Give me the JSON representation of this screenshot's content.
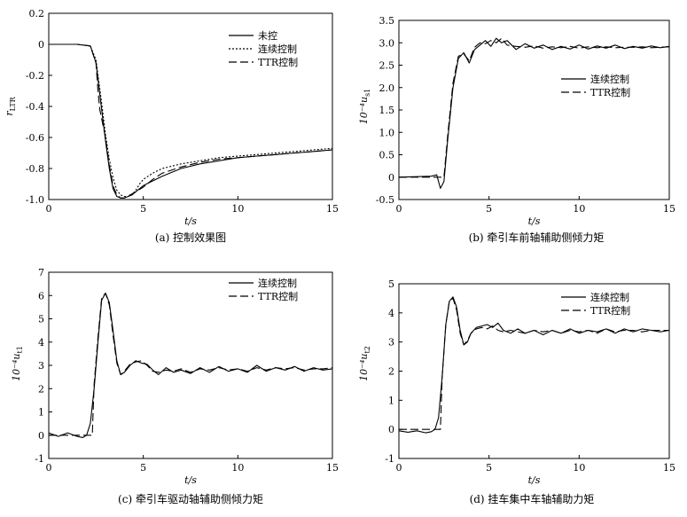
{
  "chart_data": [
    {
      "type": "line",
      "caption": "(a) 控制效果图",
      "xlabel": "t/s",
      "ylabel": "r_LTR",
      "ylabel_main": "r",
      "ylabel_sub": "LTR",
      "xlim": [
        0,
        15
      ],
      "ylim": [
        -1.0,
        0.2
      ],
      "xticks": [
        "0",
        "5",
        "10",
        "15"
      ],
      "yticks": [
        "0.2",
        "0",
        "-0.2",
        "-0.4",
        "-0.6",
        "-0.8",
        "-1.0"
      ],
      "legend_position": "top-right",
      "series": [
        {
          "name": "未控",
          "style": "solid",
          "x": [
            0,
            1.5,
            2.2,
            2.5,
            2.8,
            3.0,
            3.2,
            3.4,
            3.6,
            3.8,
            4.0,
            4.2,
            4.4,
            4.6,
            4.8,
            5.0,
            5.5,
            6.0,
            7.0,
            8.0,
            9.0,
            10.0,
            11.0,
            12.0,
            13.0,
            14.0,
            15.0
          ],
          "y": [
            0,
            0,
            -0.01,
            -0.12,
            -0.42,
            -0.62,
            -0.8,
            -0.93,
            -0.98,
            -0.99,
            -0.99,
            -0.98,
            -0.97,
            -0.95,
            -0.93,
            -0.91,
            -0.88,
            -0.85,
            -0.8,
            -0.77,
            -0.75,
            -0.73,
            -0.72,
            -0.71,
            -0.7,
            -0.69,
            -0.68
          ]
        },
        {
          "name": "连续控制",
          "style": "dotted",
          "x": [
            0,
            1.5,
            2.2,
            2.5,
            2.8,
            3.0,
            3.2,
            3.4,
            3.6,
            3.8,
            4.0,
            4.2,
            4.4,
            4.6,
            4.8,
            5.0,
            5.5,
            6.0,
            7.0,
            8.0,
            9.0,
            10.0,
            11.0,
            12.0,
            13.0,
            14.0,
            15.0
          ],
          "y": [
            0,
            0,
            -0.01,
            -0.1,
            -0.38,
            -0.58,
            -0.74,
            -0.86,
            -0.94,
            -0.97,
            -0.98,
            -0.98,
            -0.97,
            -0.94,
            -0.9,
            -0.87,
            -0.83,
            -0.8,
            -0.77,
            -0.75,
            -0.73,
            -0.72,
            -0.71,
            -0.7,
            -0.69,
            -0.68,
            -0.67
          ]
        },
        {
          "name": "TTR控制",
          "style": "dashed",
          "x": [
            0,
            1.5,
            2.2,
            2.5,
            2.6,
            2.7,
            2.8,
            3.0,
            3.2,
            3.4,
            3.6,
            3.8,
            4.0,
            4.3,
            4.6,
            5.0,
            5.5,
            6.0,
            7.0,
            8.0,
            9.0,
            10.0,
            11.0,
            12.0,
            13.0,
            14.0,
            15.0
          ],
          "y": [
            0,
            0,
            -0.01,
            -0.12,
            -0.3,
            -0.42,
            -0.48,
            -0.6,
            -0.78,
            -0.91,
            -0.97,
            -0.99,
            -0.99,
            -0.97,
            -0.95,
            -0.92,
            -0.87,
            -0.83,
            -0.79,
            -0.76,
            -0.74,
            -0.73,
            -0.72,
            -0.71,
            -0.7,
            -0.69,
            -0.68
          ]
        }
      ]
    },
    {
      "type": "line",
      "caption": "(b) 牵引车前轴辅助侧倾力矩",
      "xlabel": "t/s",
      "ylabel": "10^-4 u_s1",
      "ylabel_main": "10⁻⁴u",
      "ylabel_sub": "s1",
      "xlim": [
        0,
        15
      ],
      "ylim": [
        -0.5,
        3.5
      ],
      "xticks": [
        "0",
        "5",
        "10",
        "15"
      ],
      "yticks": [
        "3.5",
        "3.0",
        "2.5",
        "2.0",
        "1.5",
        "1.0",
        "0.5",
        "0",
        "-0.5"
      ],
      "legend_position": "center-right",
      "series": [
        {
          "name": "连续控制",
          "style": "solid",
          "x": [
            0,
            1.0,
            1.8,
            2.1,
            2.3,
            2.5,
            2.7,
            3.0,
            3.3,
            3.6,
            3.9,
            4.2,
            4.5,
            4.8,
            5.1,
            5.4,
            5.7,
            6.0,
            6.5,
            7.0,
            7.5,
            8.0,
            8.5,
            9.0,
            9.5,
            10.0,
            10.5,
            11.0,
            11.5,
            12.0,
            12.5,
            13.0,
            13.5,
            14.0,
            14.5,
            15.0
          ],
          "y": [
            0,
            0.01,
            0.02,
            0.05,
            -0.25,
            -0.1,
            0.8,
            2.0,
            2.65,
            2.78,
            2.55,
            2.85,
            2.95,
            3.05,
            2.92,
            3.1,
            3.0,
            3.05,
            2.85,
            2.98,
            2.88,
            2.95,
            2.85,
            2.92,
            2.86,
            2.95,
            2.86,
            2.93,
            2.88,
            2.95,
            2.87,
            2.92,
            2.88,
            2.93,
            2.89,
            2.92
          ]
        },
        {
          "name": "TTR控制",
          "style": "dashed",
          "x": [
            0,
            1.0,
            1.8,
            2.1,
            2.3,
            2.5,
            2.7,
            3.0,
            3.3,
            3.6,
            3.9,
            4.2,
            4.5,
            4.8,
            5.1,
            5.4,
            5.7,
            6.0,
            6.5,
            7.0,
            7.5,
            8.0,
            8.5,
            9.0,
            9.5,
            10.0,
            10.5,
            11.0,
            11.5,
            12.0,
            12.5,
            13.0,
            13.5,
            14.0,
            14.5,
            15.0
          ],
          "y": [
            0,
            0,
            0,
            0,
            0,
            0,
            0.9,
            2.1,
            2.7,
            2.75,
            2.6,
            2.9,
            3.0,
            2.98,
            3.05,
            3.0,
            3.1,
            2.95,
            2.92,
            2.9,
            2.93,
            2.88,
            2.91,
            2.89,
            2.92,
            2.88,
            2.91,
            2.89,
            2.91,
            2.89,
            2.9,
            2.9,
            2.91,
            2.89,
            2.9,
            2.91
          ]
        }
      ]
    },
    {
      "type": "line",
      "caption": "(c) 牵引车驱动轴辅助侧倾力矩",
      "xlabel": "t/s",
      "ylabel": "10^-4 u_t1",
      "ylabel_main": "10⁻⁴u",
      "ylabel_sub": "t1",
      "xlim": [
        0,
        15
      ],
      "ylim": [
        -1,
        7
      ],
      "xticks": [
        "0",
        "5",
        "10",
        "15"
      ],
      "yticks": [
        "7",
        "6",
        "5",
        "4",
        "3",
        "2",
        "1",
        "0",
        "-1"
      ],
      "legend_position": "top-right",
      "series": [
        {
          "name": "连续控制",
          "style": "solid",
          "x": [
            0,
            0.5,
            1.0,
            1.5,
            1.8,
            2.0,
            2.2,
            2.4,
            2.6,
            2.8,
            3.0,
            3.2,
            3.4,
            3.6,
            3.8,
            4.0,
            4.3,
            4.6,
            4.9,
            5.2,
            5.5,
            5.8,
            6.2,
            6.6,
            7.0,
            7.5,
            8.0,
            8.5,
            9.0,
            9.5,
            10.0,
            10.5,
            11.0,
            11.5,
            12.0,
            12.5,
            13.0,
            13.5,
            14.0,
            14.5,
            15.0
          ],
          "y": [
            0.1,
            -0.05,
            0.1,
            -0.05,
            -0.1,
            0.0,
            0.5,
            2.0,
            4.0,
            5.8,
            6.1,
            5.7,
            4.5,
            3.2,
            2.6,
            2.7,
            3.0,
            3.2,
            3.1,
            3.05,
            2.8,
            2.6,
            2.9,
            2.7,
            2.8,
            2.65,
            2.9,
            2.7,
            2.95,
            2.75,
            2.85,
            2.7,
            3.0,
            2.75,
            2.9,
            2.8,
            2.95,
            2.75,
            2.9,
            2.8,
            2.85
          ]
        },
        {
          "name": "TTR控制",
          "style": "dashed",
          "x": [
            0,
            1.0,
            2.0,
            2.3,
            2.4,
            2.6,
            2.8,
            3.0,
            3.2,
            3.4,
            3.6,
            3.8,
            4.0,
            4.3,
            4.6,
            4.9,
            5.2,
            5.5,
            5.8,
            6.2,
            6.6,
            7.0,
            7.5,
            8.0,
            8.5,
            9.0,
            9.5,
            10.0,
            10.5,
            11.0,
            11.5,
            12.0,
            12.5,
            13.0,
            13.5,
            14.0,
            14.5,
            15.0
          ],
          "y": [
            0,
            0,
            0,
            0,
            2.2,
            4.2,
            5.9,
            6.1,
            5.6,
            4.3,
            3.1,
            2.6,
            2.75,
            3.05,
            3.15,
            3.2,
            3.0,
            2.75,
            2.7,
            2.8,
            2.75,
            2.85,
            2.7,
            2.85,
            2.8,
            2.9,
            2.8,
            2.85,
            2.75,
            2.9,
            2.8,
            2.9,
            2.85,
            2.9,
            2.8,
            2.85,
            2.85,
            2.9
          ]
        }
      ]
    },
    {
      "type": "line",
      "caption": "(d) 挂车集中车轴辅助力矩",
      "xlabel": "t/s",
      "ylabel": "10^-4 u_t2",
      "ylabel_main": "10⁻⁴u",
      "ylabel_sub": "t2",
      "xlim": [
        0,
        15
      ],
      "ylim": [
        -1,
        5
      ],
      "xticks": [
        "0",
        "5",
        "10",
        "15"
      ],
      "yticks": [
        "5",
        "4",
        "3",
        "2",
        "1",
        "0",
        "-1"
      ],
      "legend_position": "top-right",
      "series": [
        {
          "name": "连续控制",
          "style": "solid",
          "x": [
            0,
            0.5,
            1.0,
            1.5,
            1.8,
            2.0,
            2.2,
            2.4,
            2.6,
            2.8,
            3.0,
            3.2,
            3.4,
            3.6,
            3.8,
            4.0,
            4.3,
            4.6,
            4.9,
            5.2,
            5.5,
            5.8,
            6.2,
            6.6,
            7.0,
            7.5,
            8.0,
            8.5,
            9.0,
            9.5,
            10.0,
            10.5,
            11.0,
            11.5,
            12.0,
            12.5,
            13.0,
            13.5,
            14.0,
            14.5,
            15.0
          ],
          "y": [
            -0.05,
            -0.1,
            -0.05,
            -0.12,
            -0.08,
            0.0,
            0.4,
            1.8,
            3.6,
            4.4,
            4.55,
            4.2,
            3.4,
            2.9,
            3.0,
            3.3,
            3.5,
            3.55,
            3.6,
            3.5,
            3.65,
            3.4,
            3.3,
            3.45,
            3.3,
            3.4,
            3.25,
            3.4,
            3.3,
            3.45,
            3.3,
            3.4,
            3.35,
            3.45,
            3.3,
            3.45,
            3.35,
            3.45,
            3.4,
            3.35,
            3.4
          ]
        },
        {
          "name": "TTR控制",
          "style": "dashed",
          "x": [
            0,
            1.0,
            2.0,
            2.3,
            2.4,
            2.6,
            2.8,
            3.0,
            3.2,
            3.4,
            3.6,
            3.8,
            4.0,
            4.3,
            4.6,
            4.9,
            5.2,
            5.5,
            5.8,
            6.2,
            6.6,
            7.0,
            7.5,
            8.0,
            8.5,
            9.0,
            9.5,
            10.0,
            10.5,
            11.0,
            11.5,
            12.0,
            12.5,
            13.0,
            13.5,
            14.0,
            14.5,
            15.0
          ],
          "y": [
            0,
            0,
            0,
            0,
            1.8,
            3.6,
            4.4,
            4.5,
            4.1,
            3.3,
            2.9,
            3.05,
            3.3,
            3.45,
            3.5,
            3.45,
            3.55,
            3.4,
            3.35,
            3.4,
            3.35,
            3.3,
            3.4,
            3.35,
            3.4,
            3.3,
            3.4,
            3.35,
            3.4,
            3.3,
            3.45,
            3.35,
            3.4,
            3.4,
            3.35,
            3.4,
            3.4,
            3.4
          ]
        }
      ]
    }
  ]
}
